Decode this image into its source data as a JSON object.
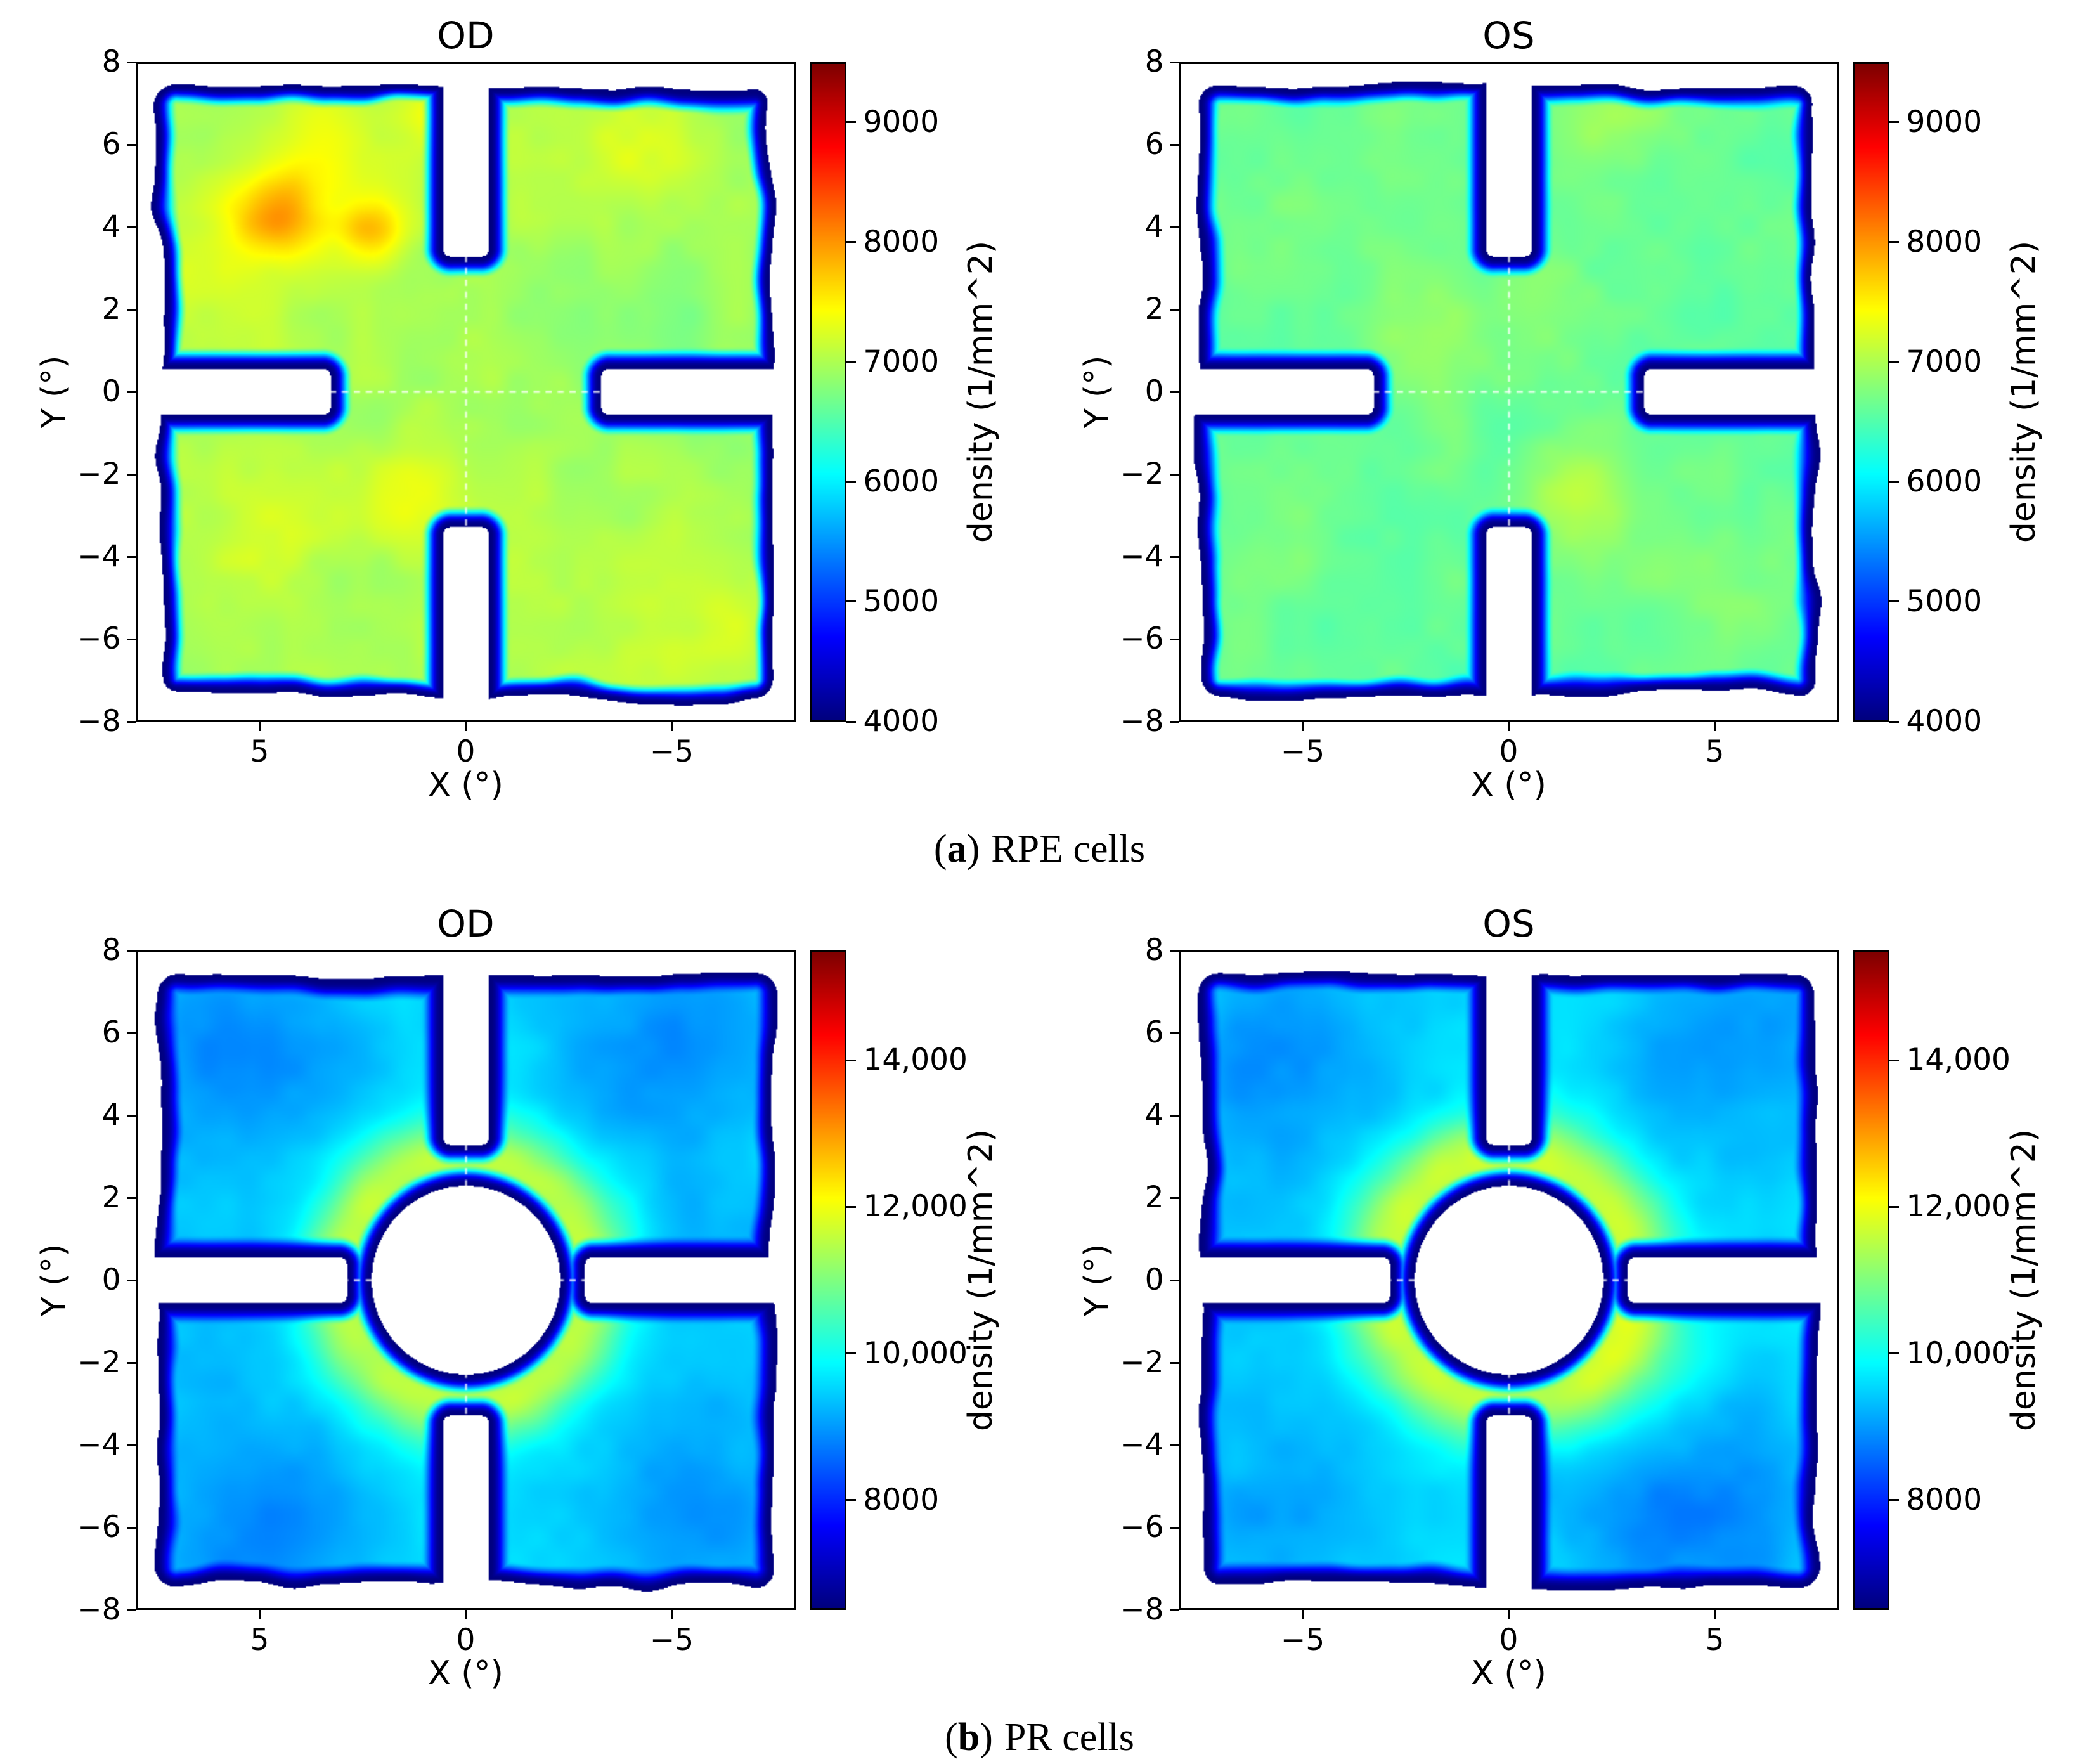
{
  "captions": {
    "a": {
      "open": "(",
      "letter": "a",
      "close": ")",
      "text": "RPE cells"
    },
    "b": {
      "open": "(",
      "letter": "b",
      "close": ")",
      "text": "PR cells"
    }
  },
  "chart_data": [
    {
      "type": "heatmap",
      "id": "rpe-od",
      "title": "OD",
      "xlabel": "X (°)",
      "ylabel": "Y (°)",
      "x_dir": "reversed",
      "xlim": [
        -8,
        8
      ],
      "ylim": [
        -8,
        8
      ],
      "xticks": [
        {
          "v": 5,
          "label": "5"
        },
        {
          "v": 0,
          "label": "0"
        },
        {
          "v": -5,
          "label": "−5"
        }
      ],
      "yticks": [
        {
          "v": 8,
          "label": "8"
        },
        {
          "v": 6,
          "label": "6"
        },
        {
          "v": 4,
          "label": "4"
        },
        {
          "v": 2,
          "label": "2"
        },
        {
          "v": 0,
          "label": "0"
        },
        {
          "v": -2,
          "label": "−2"
        },
        {
          "v": -4,
          "label": "−4"
        },
        {
          "v": -6,
          "label": "−6"
        },
        {
          "v": -8,
          "label": "−8"
        }
      ],
      "colorbar": {
        "label": "density (1/mm^2)",
        "vmin": 4000,
        "vmax": 9500,
        "ticks": [
          {
            "v": 4000,
            "label": "4000"
          },
          {
            "v": 5000,
            "label": "5000"
          },
          {
            "v": 6000,
            "label": "6000"
          },
          {
            "v": 7000,
            "label": "7000"
          },
          {
            "v": 8000,
            "label": "8000"
          },
          {
            "v": 9000,
            "label": "9000"
          }
        ]
      },
      "shape": {
        "half_w": 7.5,
        "half_h": 7.45,
        "corner_r": 0.45,
        "wobble": 0.5,
        "notch_half_w": 0.36,
        "notch_round": 0.2,
        "notch_v_start": 3.5,
        "notch_h_start": 3.5,
        "hole_r": 0
      },
      "edge": {
        "width": 0.55,
        "pow": 1.5
      },
      "field": {
        "base": 6950,
        "noise_amp": 150,
        "seed": 1.3,
        "blobs": [
          {
            "x": 4.6,
            "y": 4.3,
            "s": 0.75,
            "a": 850
          },
          {
            "x": 2.3,
            "y": 3.9,
            "s": 0.6,
            "a": 750
          },
          {
            "x": 3.4,
            "y": 5.6,
            "s": 1.4,
            "a": 350
          },
          {
            "x": 6.0,
            "y": 2.5,
            "s": 1.5,
            "a": 250
          },
          {
            "x": 1.2,
            "y": -2.6,
            "s": 0.9,
            "a": 350
          },
          {
            "x": 4.8,
            "y": -3.2,
            "s": 1.2,
            "a": 300
          },
          {
            "x": -4.0,
            "y": 6.3,
            "s": 1.5,
            "a": 250
          },
          {
            "x": -5.8,
            "y": -5.6,
            "s": 1.4,
            "a": 250
          },
          {
            "x": -2.5,
            "y": -4.5,
            "s": 1.6,
            "a": 150
          },
          {
            "x": 0.5,
            "y": 6.8,
            "s": 0.8,
            "a": 300
          },
          {
            "x": -5.0,
            "y": 1.5,
            "s": 1.5,
            "a": -150
          }
        ]
      }
    },
    {
      "type": "heatmap",
      "id": "rpe-os",
      "title": "OS",
      "xlabel": "X (°)",
      "ylabel": "Y (°)",
      "x_dir": "normal",
      "xlim": [
        -8,
        8
      ],
      "ylim": [
        -8,
        8
      ],
      "xticks": [
        {
          "v": -5,
          "label": "−5"
        },
        {
          "v": 0,
          "label": "0"
        },
        {
          "v": 5,
          "label": "5"
        }
      ],
      "yticks": [
        {
          "v": 8,
          "label": "8"
        },
        {
          "v": 6,
          "label": "6"
        },
        {
          "v": 4,
          "label": "4"
        },
        {
          "v": 2,
          "label": "2"
        },
        {
          "v": 0,
          "label": "0"
        },
        {
          "v": -2,
          "label": "−2"
        },
        {
          "v": -4,
          "label": "−4"
        },
        {
          "v": -6,
          "label": "−6"
        },
        {
          "v": -8,
          "label": "−8"
        }
      ],
      "colorbar": {
        "label": "density (1/mm^2)",
        "vmin": 4000,
        "vmax": 9500,
        "ticks": [
          {
            "v": 4000,
            "label": "4000"
          },
          {
            "v": 5000,
            "label": "5000"
          },
          {
            "v": 6000,
            "label": "6000"
          },
          {
            "v": 7000,
            "label": "7000"
          },
          {
            "v": 8000,
            "label": "8000"
          },
          {
            "v": 9000,
            "label": "9000"
          }
        ]
      },
      "shape": {
        "half_w": 7.5,
        "half_h": 7.45,
        "corner_r": 0.45,
        "wobble": 0.5,
        "notch_half_w": 0.36,
        "notch_round": 0.2,
        "notch_v_start": 3.5,
        "notch_h_start": 3.5,
        "hole_r": 0
      },
      "edge": {
        "width": 0.55,
        "pow": 1.5
      },
      "field": {
        "base": 6600,
        "noise_amp": 140,
        "seed": 2.7,
        "blobs": [
          {
            "x": 1.6,
            "y": -2.5,
            "s": 0.9,
            "a": 450
          },
          {
            "x": 2.3,
            "y": 6.6,
            "s": 1.0,
            "a": 350
          },
          {
            "x": -2.0,
            "y": 1.2,
            "s": 1.4,
            "a": 200
          },
          {
            "x": 5.2,
            "y": -4.5,
            "s": 1.5,
            "a": 180
          },
          {
            "x": -5.5,
            "y": -3.0,
            "s": 1.5,
            "a": 120
          },
          {
            "x": -4.0,
            "y": 5.0,
            "s": 1.6,
            "a": 100
          },
          {
            "x": 0.8,
            "y": 2.2,
            "s": 0.9,
            "a": 250
          }
        ]
      }
    },
    {
      "type": "heatmap",
      "id": "pr-od",
      "title": "OD",
      "xlabel": "X (°)",
      "ylabel": "Y (°)",
      "x_dir": "reversed",
      "xlim": [
        -8,
        8
      ],
      "ylim": [
        -8,
        8
      ],
      "xticks": [
        {
          "v": 5,
          "label": "5"
        },
        {
          "v": 0,
          "label": "0"
        },
        {
          "v": -5,
          "label": "−5"
        }
      ],
      "yticks": [
        {
          "v": 8,
          "label": "8"
        },
        {
          "v": 6,
          "label": "6"
        },
        {
          "v": 4,
          "label": "4"
        },
        {
          "v": 2,
          "label": "2"
        },
        {
          "v": 0,
          "label": "0"
        },
        {
          "v": -2,
          "label": "−2"
        },
        {
          "v": -4,
          "label": "−4"
        },
        {
          "v": -6,
          "label": "−6"
        },
        {
          "v": -8,
          "label": "−8"
        }
      ],
      "colorbar": {
        "label": "density (1/mm^2)",
        "vmin": 6500,
        "vmax": 15500,
        "ticks": [
          {
            "v": 8000,
            "label": "8000"
          },
          {
            "v": 10000,
            "label": "10,000"
          },
          {
            "v": 12000,
            "label": "12,000"
          },
          {
            "v": 14000,
            "label": "14,000"
          }
        ]
      },
      "shape": {
        "half_w": 7.5,
        "half_h": 7.45,
        "corner_r": 0.45,
        "wobble": 0.4,
        "notch_half_w": 0.36,
        "notch_round": 0.2,
        "notch_v_start": 3.5,
        "notch_h_start": 3.1,
        "hole_r": 2.3
      },
      "edge": {
        "width": 0.55,
        "pow": 1.5
      },
      "field": {
        "base": 9700,
        "noise_amp": 200,
        "seed": 3.9,
        "ring": {
          "r": 3.0,
          "s": 0.75,
          "a": 1900
        },
        "blobs": [
          {
            "x": 5.5,
            "y": 5.5,
            "s": 2.2,
            "a": -900
          },
          {
            "x": -5.0,
            "y": 6.0,
            "s": 2.2,
            "a": -800
          },
          {
            "x": -5.8,
            "y": -5.5,
            "s": 2.2,
            "a": -700
          },
          {
            "x": 5.0,
            "y": -6.0,
            "s": 2.2,
            "a": -800
          },
          {
            "x": -6.5,
            "y": 0.5,
            "s": 1.8,
            "a": -400
          },
          {
            "x": 6.5,
            "y": -0.5,
            "s": 1.8,
            "a": -300
          }
        ]
      }
    },
    {
      "type": "heatmap",
      "id": "pr-os",
      "title": "OS",
      "xlabel": "X (°)",
      "ylabel": "Y (°)",
      "x_dir": "normal",
      "xlim": [
        -8,
        8
      ],
      "ylim": [
        -8,
        8
      ],
      "xticks": [
        {
          "v": -5,
          "label": "−5"
        },
        {
          "v": 0,
          "label": "0"
        },
        {
          "v": 5,
          "label": "5"
        }
      ],
      "yticks": [
        {
          "v": 8,
          "label": "8"
        },
        {
          "v": 6,
          "label": "6"
        },
        {
          "v": 4,
          "label": "4"
        },
        {
          "v": 2,
          "label": "2"
        },
        {
          "v": 0,
          "label": "0"
        },
        {
          "v": -2,
          "label": "−2"
        },
        {
          "v": -4,
          "label": "−4"
        },
        {
          "v": -6,
          "label": "−6"
        },
        {
          "v": -8,
          "label": "−8"
        }
      ],
      "colorbar": {
        "label": "density (1/mm^2)",
        "vmin": 6500,
        "vmax": 15500,
        "ticks": [
          {
            "v": 8000,
            "label": "8000"
          },
          {
            "v": 10000,
            "label": "10,000"
          },
          {
            "v": 12000,
            "label": "12,000"
          },
          {
            "v": 14000,
            "label": "14,000"
          }
        ]
      },
      "shape": {
        "half_w": 7.5,
        "half_h": 7.45,
        "corner_r": 0.45,
        "wobble": 0.4,
        "notch_half_w": 0.36,
        "notch_round": 0.2,
        "notch_v_start": 3.5,
        "notch_h_start": 3.1,
        "hole_r": 2.3
      },
      "edge": {
        "width": 0.55,
        "pow": 1.5
      },
      "field": {
        "base": 9700,
        "noise_amp": 200,
        "seed": 4.4,
        "ring": {
          "r": 3.0,
          "s": 0.8,
          "a": 2000
        },
        "blobs": [
          {
            "x": -5.5,
            "y": 5.5,
            "s": 2.2,
            "a": -800
          },
          {
            "x": 5.5,
            "y": 5.8,
            "s": 2.2,
            "a": -700
          },
          {
            "x": -5.5,
            "y": -5.8,
            "s": 2.2,
            "a": -600
          },
          {
            "x": 4.5,
            "y": -5.5,
            "s": 2.4,
            "a": -900
          },
          {
            "x": 3.5,
            "y": -2.5,
            "s": 1.2,
            "a": 600
          },
          {
            "x": -6.5,
            "y": 0.0,
            "s": 1.8,
            "a": -300
          }
        ]
      }
    }
  ],
  "style": {
    "crosshair_color": "#ffffff",
    "edge_color_low": "#00007f",
    "colormap": "jet"
  }
}
